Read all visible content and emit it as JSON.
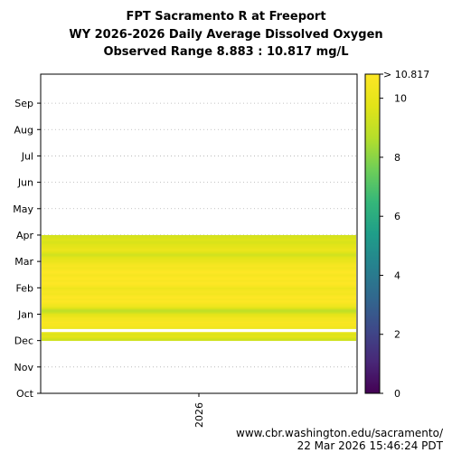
{
  "chart_data": {
    "type": "heatmap",
    "title_lines": [
      "FPT Sacramento R at Freeport",
      "WY 2026-2026 Daily Average Dissolved Oxygen",
      "Observed Range 8.883 : 10.817 mg/L"
    ],
    "y_ticks": [
      "Oct",
      "Nov",
      "Dec",
      "Jan",
      "Feb",
      "Mar",
      "Apr",
      "May",
      "Jun",
      "Jul",
      "Aug",
      "Sep"
    ],
    "x_ticks": [
      "2026"
    ],
    "colorbar": {
      "colormap": "viridis",
      "min": 0,
      "max": 10.817,
      "ticks": [
        0,
        2,
        4,
        6,
        8,
        10
      ],
      "top_label": "> 10.817"
    },
    "series": [
      {
        "water_year": "2026",
        "values_by_month": [
          {
            "month": "Dec",
            "values": [
              9.3,
              9.2,
              9.4,
              9.6,
              9.8,
              9.9,
              9.7,
              9.5,
              9.8,
              10.0,
              null,
              null,
              null,
              null,
              10.1,
              10.3,
              10.4,
              10.5,
              10.6,
              10.5,
              10.6,
              10.7,
              10.6,
              10.5,
              10.4,
              10.3,
              10.4,
              10.2,
              10.1,
              10.0,
              9.9
            ]
          },
          {
            "month": "Jan",
            "values": [
              9.7,
              9.4,
              9.2,
              9.0,
              8.9,
              9.1,
              9.4,
              9.7,
              10.0,
              10.2,
              10.3,
              10.4,
              10.5,
              10.6,
              10.7,
              10.8,
              10.7,
              10.6,
              10.7,
              10.8,
              10.8,
              10.7,
              10.6,
              10.5,
              10.4,
              10.5,
              10.6,
              10.5,
              10.4,
              10.3,
              10.2
            ]
          },
          {
            "month": "Feb",
            "values": [
              10.3,
              10.5,
              10.6,
              10.7,
              10.8,
              10.8,
              10.7,
              10.6,
              10.7,
              10.8,
              10.8,
              10.7,
              10.6,
              10.5,
              10.6,
              10.7,
              10.8,
              10.8,
              10.7,
              10.6,
              10.5,
              10.4,
              10.5,
              10.6,
              10.5,
              10.4,
              10.3,
              10.2
            ]
          },
          {
            "month": "Mar",
            "values": [
              10.1,
              10.0,
              9.9,
              9.7,
              9.5,
              9.3,
              9.5,
              9.7,
              10.0,
              10.1,
              10.0,
              9.9,
              9.8,
              9.7,
              9.6,
              9.5,
              9.6,
              9.7,
              9.6,
              9.5,
              9.4
            ]
          }
        ]
      }
    ]
  },
  "footer": {
    "line1": "www.cbr.washington.edu/sacramento/",
    "line2": "22 Mar 2026 15:46:24 PDT"
  }
}
